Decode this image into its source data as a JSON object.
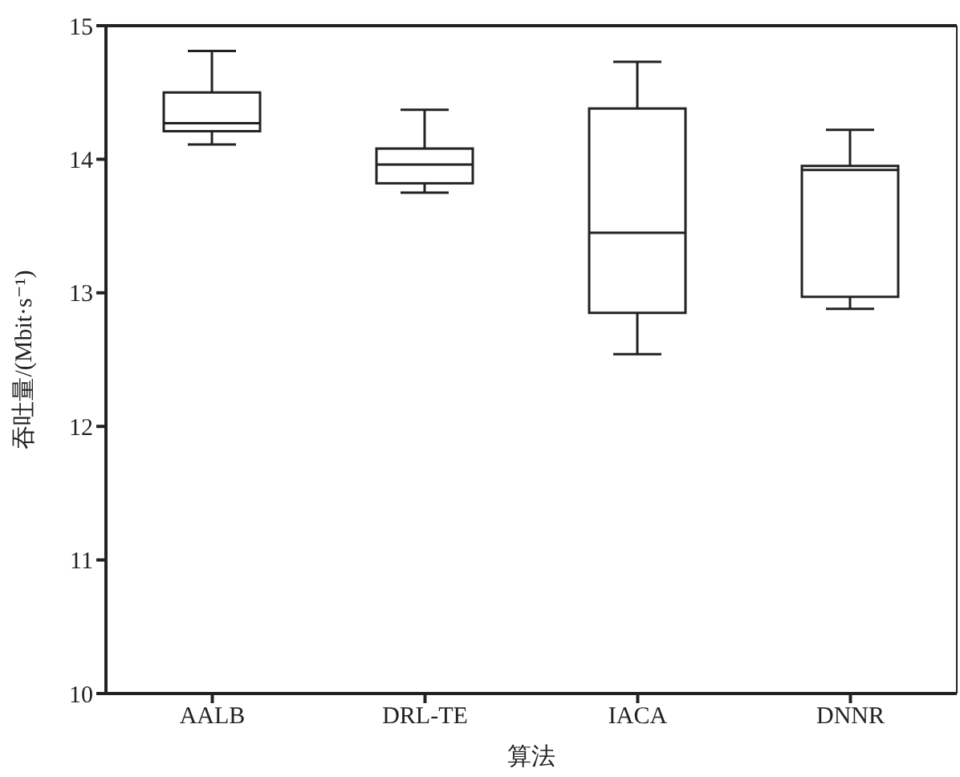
{
  "chart_data": {
    "type": "box",
    "xlabel": "算法",
    "ylabel": "吞吐量/(Mbit·s⁻¹)",
    "categories": [
      "AALB",
      "DRL-TE",
      "IACA",
      "DNNR"
    ],
    "boxes": [
      {
        "low": 14.11,
        "q1": 14.21,
        "median": 14.27,
        "q3": 14.5,
        "high": 14.81
      },
      {
        "low": 13.75,
        "q1": 13.82,
        "median": 13.96,
        "q3": 14.08,
        "high": 14.37
      },
      {
        "low": 12.54,
        "q1": 12.85,
        "median": 13.45,
        "q3": 14.38,
        "high": 14.73
      },
      {
        "low": 12.88,
        "q1": 12.97,
        "median": 13.92,
        "q3": 13.95,
        "high": 14.22
      }
    ],
    "ylim": [
      10,
      15
    ],
    "yticks": [
      10,
      11,
      12,
      13,
      14,
      15
    ],
    "grid": false,
    "legend": false
  }
}
